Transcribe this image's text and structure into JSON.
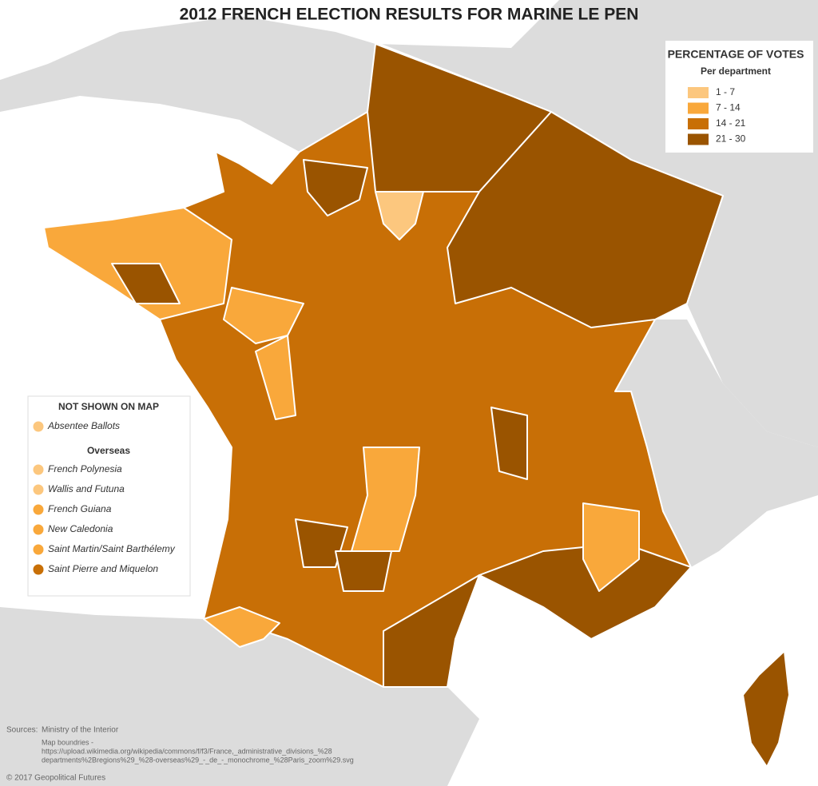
{
  "title": "2012 FRENCH ELECTION RESULTS FOR MARINE LE PEN",
  "legend": {
    "title": "PERCENTAGE OF VOTES",
    "subtitle": "Per department",
    "classes": [
      {
        "label": "1 - 7",
        "color": "#fcc77e"
      },
      {
        "label": "7 - 14",
        "color": "#f9a83b"
      },
      {
        "label": "14 - 21",
        "color": "#c86f06"
      },
      {
        "label": "21 - 30",
        "color": "#9a5400"
      }
    ]
  },
  "not_shown": {
    "title": "NOT SHOWN ON MAP",
    "items": [
      {
        "label": "Absentee Ballots",
        "color": "#fcc77e"
      }
    ],
    "overseas_title": "Overseas",
    "overseas": [
      {
        "label": "French Polynesia",
        "color": "#fcc77e"
      },
      {
        "label": "Wallis and Futuna",
        "color": "#fcc77e"
      },
      {
        "label": "French Guiana",
        "color": "#f9a83b"
      },
      {
        "label": "New Caledonia",
        "color": "#f9a83b"
      },
      {
        "label": "Saint Martin/Saint Barthélemy",
        "color": "#f9a83b"
      },
      {
        "label": "Saint Pierre and Miquelon",
        "color": "#c86f06"
      }
    ]
  },
  "sources": {
    "label": "Sources:",
    "text": "Ministry of the Interior",
    "map_boundaries": "Map boundries -",
    "url_line1": "https://upload.wikimedia.org/wikipedia/commons/f/f3/France,_administrative_divisions_%28",
    "url_line2": "departments%2Bregions%29_%28-overseas%29_-_de_-_monochrome_%28Paris_zoom%29.svg"
  },
  "copyright": "© 2017 Geopolitical Futures"
}
